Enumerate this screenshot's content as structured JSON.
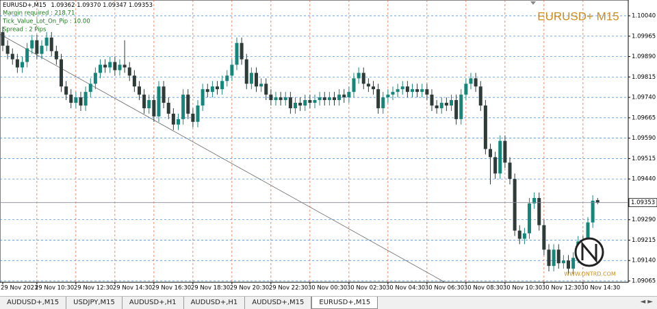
{
  "chart_data": {
    "type": "candlestick",
    "symbol": "EURUSD+,M15",
    "quote": [
      "1.09362",
      "1.09370",
      "1.09347",
      "1.09353"
    ],
    "info": [
      "Margin required : 218.71",
      "Tick_Value_Lot_On_Pip : 10.00",
      "Spread : 2  Pips"
    ],
    "watermark": "EURUSD+ M15",
    "logo": "WWW.ONTRD.COM",
    "up_color": "#14877a",
    "down_color": "#2e3b38",
    "grid": true,
    "ylim": [
      1.0906,
      1.10098
    ],
    "yticks": [
      {
        "value": 1.1004,
        "label": "1.10040"
      },
      1.09965,
      {
        "value": 1.0989,
        "label": "1.09890"
      },
      1.09815,
      {
        "value": 1.0974,
        "label": "1.09740"
      },
      1.09665,
      {
        "value": 1.0959,
        "label": "1.09590"
      },
      1.09515,
      {
        "value": 1.0944,
        "label": "1.09440"
      },
      {
        "value": 1.0929,
        "label": "1.09290"
      },
      1.09215,
      {
        "value": 1.0914,
        "label": "1.09140"
      },
      1.09065
    ],
    "categories": [
      "29 Nov 2023",
      null,
      null,
      null,
      null,
      null,
      null,
      "29 Nov 10:30",
      null,
      null,
      null,
      null,
      null,
      null,
      null,
      "29 Nov 12:30",
      null,
      null,
      null,
      null,
      null,
      null,
      null,
      "29 Nov 14:30",
      null,
      null,
      null,
      null,
      null,
      null,
      null,
      "29 Nov 16:30",
      null,
      null,
      null,
      null,
      null,
      null,
      null,
      "29 Nov 18:30",
      null,
      null,
      null,
      null,
      null,
      null,
      null,
      "29 Nov 20:30",
      null,
      null,
      null,
      null,
      null,
      null,
      null,
      "29 Nov 22:30",
      null,
      null,
      null,
      null,
      null,
      null,
      null,
      "30 Nov 00:30",
      null,
      null,
      null,
      null,
      null,
      null,
      null,
      "30 Nov 02:30",
      null,
      null,
      null,
      null,
      null,
      null,
      null,
      "30 Nov 04:30",
      null,
      null,
      null,
      null,
      null,
      null,
      null,
      "30 Nov 06:30",
      null,
      null,
      null,
      null,
      null,
      null,
      null,
      "30 Nov 08:30",
      null,
      null,
      null,
      null,
      null,
      null,
      null,
      "30 Nov 10:30",
      null,
      null,
      null,
      null,
      null,
      null,
      null,
      "30 Nov 12:30",
      null,
      null,
      null,
      null,
      null,
      null,
      null,
      "30 Nov 14:30",
      null,
      null,
      null
    ],
    "open": [
      1.0998,
      1.0993,
      1.099,
      1.0988,
      1.0985,
      1.0987,
      1.0992,
      1.0995,
      1.099,
      1.0993,
      1.0996,
      1.0991,
      1.0988,
      1.0978,
      1.0975,
      1.0972,
      1.0974,
      1.0971,
      1.0976,
      1.0979,
      1.0983,
      1.0986,
      1.0985,
      1.0987,
      1.0984,
      1.0986,
      1.0985,
      1.0982,
      1.0978,
      1.0975,
      1.097,
      1.0973,
      1.0967,
      1.0978,
      1.0972,
      1.0968,
      1.0964,
      1.0966,
      1.0975,
      1.0968,
      1.0965,
      1.0971,
      1.0977,
      1.0976,
      1.0978,
      1.0977,
      1.098,
      1.0982,
      1.0986,
      1.0994,
      1.0988,
      1.0979,
      1.0983,
      1.0978,
      1.0979,
      1.0975,
      1.0973,
      1.0974,
      1.0973,
      1.0974,
      1.097,
      1.0972,
      1.0971,
      1.0973,
      1.0972,
      1.0973,
      1.0974,
      1.0973,
      1.0974,
      1.0973,
      1.0975,
      1.0974,
      1.0976,
      1.0981,
      1.0983,
      1.0979,
      1.0978,
      1.0977,
      1.097,
      1.0974,
      1.0975,
      1.0976,
      1.0977,
      1.0978,
      1.0976,
      1.0977,
      1.0976,
      1.0977,
      1.0975,
      1.0971,
      1.097,
      1.0972,
      1.0971,
      1.0973,
      1.0966,
      1.0975,
      1.0979,
      1.0981,
      1.0978,
      1.0971,
      1.0955,
      1.0952,
      1.0946,
      1.0958,
      1.095,
      1.0944,
      1.0925,
      1.0922,
      1.0924,
      1.0935,
      1.0937,
      1.0927,
      1.0918,
      1.0912,
      1.0918,
      1.0913,
      1.0914,
      1.0911,
      1.0915,
      1.0921,
      1.0919,
      1.0928,
      1.09362
    ],
    "high": [
      1.1,
      1.0995,
      1.0992,
      1.099,
      1.0989,
      1.0994,
      1.0997,
      1.0997,
      1.0995,
      1.0998,
      1.0998,
      1.0993,
      1.099,
      1.098,
      1.0977,
      1.0976,
      1.0976,
      1.0978,
      1.0981,
      1.0985,
      1.0988,
      1.0988,
      1.0989,
      1.0989,
      1.0988,
      1.0995,
      1.0987,
      1.0984,
      1.098,
      1.0977,
      1.0975,
      1.0975,
      1.098,
      1.098,
      1.0974,
      1.097,
      1.0968,
      1.0977,
      1.0977,
      1.097,
      1.0973,
      1.0979,
      1.0979,
      1.098,
      1.098,
      1.0982,
      1.0984,
      1.0988,
      1.0996,
      1.0996,
      1.099,
      1.0985,
      1.0985,
      1.0981,
      1.0981,
      1.0977,
      1.0976,
      1.0976,
      1.0976,
      1.0976,
      1.0974,
      1.0974,
      1.0975,
      1.0975,
      1.0975,
      1.0976,
      1.0976,
      1.0976,
      1.0976,
      1.0977,
      1.0977,
      1.0978,
      1.0983,
      1.0985,
      1.0985,
      1.0981,
      1.098,
      1.0979,
      1.0976,
      1.0977,
      1.0978,
      1.0979,
      1.098,
      1.098,
      1.0979,
      1.0979,
      1.0979,
      1.0979,
      1.0977,
      1.0973,
      1.0974,
      1.0974,
      1.0975,
      1.0975,
      1.0977,
      1.0981,
      1.0983,
      1.0983,
      1.098,
      1.0973,
      1.0957,
      1.0954,
      1.096,
      1.096,
      1.0952,
      1.0946,
      1.0927,
      1.0926,
      1.0937,
      1.0939,
      1.0939,
      1.0929,
      1.092,
      1.092,
      1.092,
      1.0916,
      1.0916,
      1.0917,
      1.0923,
      1.0923,
      1.093,
      1.0938,
      1.0937
    ],
    "low": [
      1.0991,
      1.0988,
      1.0986,
      1.0983,
      1.0983,
      1.0985,
      1.099,
      1.0988,
      1.0988,
      1.0991,
      1.0989,
      1.0986,
      1.0976,
      1.0973,
      1.097,
      1.097,
      1.0969,
      1.0969,
      1.0974,
      1.0977,
      1.0981,
      1.0983,
      1.0983,
      1.0982,
      1.0982,
      1.0983,
      1.098,
      1.0976,
      1.0973,
      1.0968,
      1.0968,
      1.0965,
      1.0965,
      1.097,
      1.0966,
      1.0962,
      1.0962,
      1.0964,
      1.0966,
      1.0963,
      1.0963,
      1.0969,
      1.0974,
      1.0974,
      1.0975,
      1.0975,
      1.0978,
      1.098,
      1.0984,
      1.0986,
      1.0977,
      1.0977,
      1.0976,
      1.0976,
      1.0973,
      1.0971,
      1.0971,
      1.0971,
      1.0971,
      1.0968,
      1.0968,
      1.0969,
      1.0969,
      1.097,
      1.097,
      1.0971,
      1.0971,
      1.0971,
      1.0971,
      1.0971,
      1.0972,
      1.0972,
      1.0974,
      1.0979,
      1.0977,
      1.0976,
      1.0975,
      1.0968,
      1.0968,
      1.0972,
      1.0973,
      1.0974,
      1.0975,
      1.0974,
      1.0974,
      1.0974,
      1.0974,
      1.0973,
      1.0969,
      1.0968,
      1.0968,
      1.0969,
      1.0969,
      1.0964,
      1.0964,
      1.0973,
      1.0977,
      1.0976,
      1.0969,
      1.0953,
      1.0942,
      1.0944,
      1.0944,
      1.0948,
      1.0942,
      1.0923,
      1.092,
      1.092,
      1.0922,
      1.0933,
      1.0925,
      1.0916,
      1.091,
      1.091,
      1.0911,
      1.0911,
      1.0909,
      1.0909,
      1.0913,
      1.0917,
      1.0917,
      1.0926,
      1.09347
    ],
    "close": [
      1.0993,
      1.099,
      1.0988,
      1.0985,
      1.0987,
      1.0992,
      1.0995,
      1.099,
      1.0993,
      1.0996,
      1.0991,
      1.0988,
      1.0978,
      1.0975,
      1.0972,
      1.0974,
      1.0971,
      1.0976,
      1.0979,
      1.0983,
      1.0986,
      1.0985,
      1.0987,
      1.0984,
      1.0986,
      1.0985,
      1.0982,
      1.0978,
      1.0975,
      1.097,
      1.0973,
      1.0967,
      1.0978,
      1.0972,
      1.0968,
      1.0964,
      1.0966,
      1.0975,
      1.0968,
      1.0965,
      1.0971,
      1.0977,
      1.0976,
      1.0978,
      1.0977,
      1.098,
      1.0982,
      1.0986,
      1.0994,
      1.0988,
      1.0979,
      1.0983,
      1.0978,
      1.0979,
      1.0975,
      1.0973,
      1.0974,
      1.0973,
      1.0974,
      1.097,
      1.0972,
      1.0971,
      1.0973,
      1.0972,
      1.0973,
      1.0974,
      1.0973,
      1.0974,
      1.0973,
      1.0975,
      1.0974,
      1.0976,
      1.0981,
      1.0983,
      1.0979,
      1.0978,
      1.0977,
      1.097,
      1.0974,
      1.0975,
      1.0976,
      1.0977,
      1.0978,
      1.0976,
      1.0977,
      1.0976,
      1.0977,
      1.0975,
      1.0971,
      1.097,
      1.0972,
      1.0971,
      1.0973,
      1.0966,
      1.0975,
      1.0979,
      1.0981,
      1.0978,
      1.0971,
      1.0955,
      1.0952,
      1.0946,
      1.0958,
      1.095,
      1.0944,
      1.0925,
      1.0922,
      1.0924,
      1.0935,
      1.0937,
      1.0927,
      1.0918,
      1.0912,
      1.0918,
      1.0913,
      1.0914,
      1.0911,
      1.0915,
      1.0921,
      1.0919,
      1.0928,
      1.0936,
      1.09353
    ]
  },
  "tabs": [
    "AUDUSD+,M15",
    "USDJPY,M15",
    "AUDUSD+,H1",
    "AUDUSD+,H1",
    "AUDUSD+,M15",
    "EURUSD+,M15"
  ]
}
